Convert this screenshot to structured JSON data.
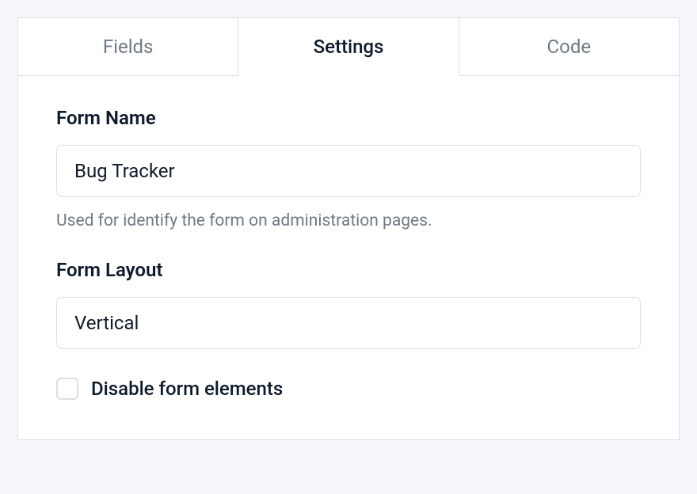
{
  "tabs": {
    "fields": {
      "label": "Fields",
      "active": false
    },
    "settings": {
      "label": "Settings",
      "active": true
    },
    "code": {
      "label": "Code",
      "active": false
    }
  },
  "formName": {
    "label": "Form Name",
    "value": "Bug Tracker",
    "help": "Used for identify the form on administration pages."
  },
  "formLayout": {
    "label": "Form Layout",
    "value": "Vertical"
  },
  "disableElements": {
    "label": "Disable form elements",
    "checked": false
  },
  "colors": {
    "background": "#f5f7fa",
    "border": "#dbe0e6",
    "textPrimary": "#0f1b2b",
    "textMuted": "#6f7985",
    "panel": "#ffffff"
  }
}
